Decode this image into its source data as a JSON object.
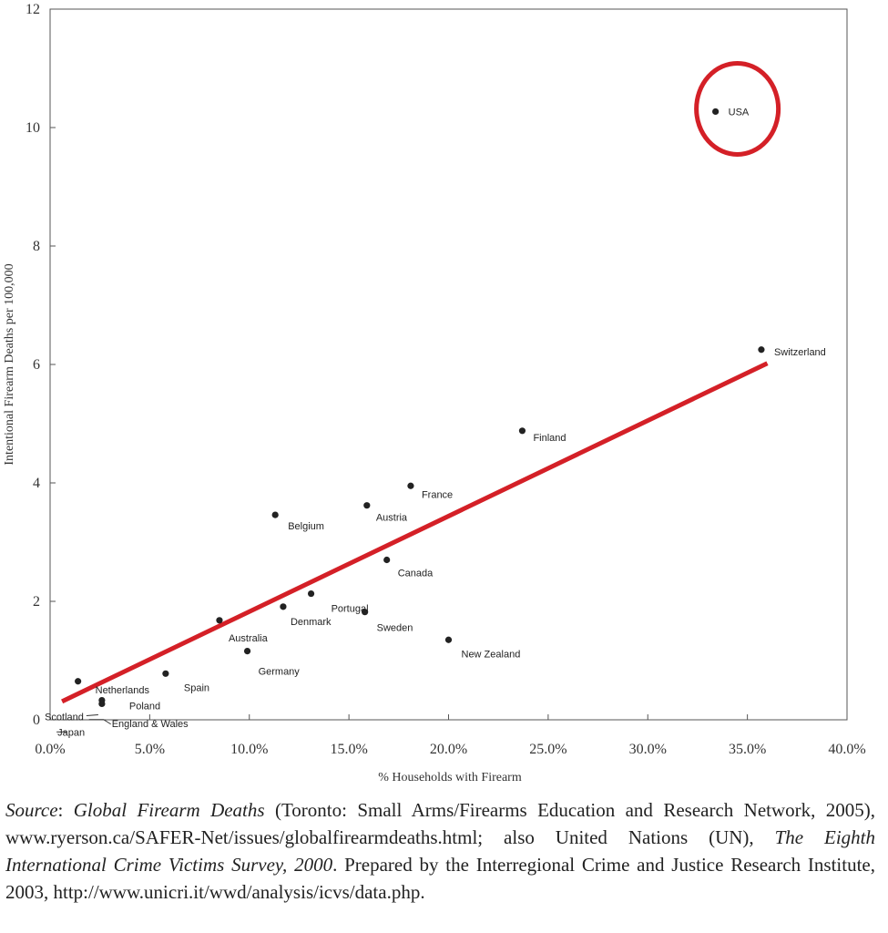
{
  "chart_data": {
    "type": "scatter",
    "title": "",
    "xlabel": "% Households with Firearm",
    "ylabel": "Intentional Firearm Deaths per 100,000",
    "xlim": [
      0,
      40
    ],
    "ylim": [
      0,
      12
    ],
    "x_ticks": [
      0,
      5,
      10,
      15,
      20,
      25,
      30,
      35,
      40
    ],
    "x_tick_labels": [
      "0.0%",
      "5.0%",
      "10.0%",
      "15.0%",
      "20.0%",
      "25.0%",
      "30.0%",
      "35.0%",
      "40.0%"
    ],
    "y_ticks": [
      0,
      2,
      4,
      6,
      8,
      10,
      12
    ],
    "y_tick_labels": [
      "0",
      "2",
      "4",
      "6",
      "8",
      "10",
      "12"
    ],
    "grid": false,
    "points": [
      {
        "label": "USA",
        "x": 33.4,
        "y": 10.27
      },
      {
        "label": "Switzerland",
        "x": 35.7,
        "y": 6.25
      },
      {
        "label": "Finland",
        "x": 23.7,
        "y": 4.88
      },
      {
        "label": "France",
        "x": 18.1,
        "y": 3.95
      },
      {
        "label": "Austria",
        "x": 15.9,
        "y": 3.62
      },
      {
        "label": "Belgium",
        "x": 11.3,
        "y": 3.46
      },
      {
        "label": "Canada",
        "x": 16.9,
        "y": 2.7
      },
      {
        "label": "Portugal",
        "x": 13.1,
        "y": 2.13
      },
      {
        "label": "Denmark",
        "x": 11.7,
        "y": 1.91
      },
      {
        "label": "Sweden",
        "x": 15.8,
        "y": 1.82
      },
      {
        "label": "Australia",
        "x": 8.5,
        "y": 1.68
      },
      {
        "label": "New Zealand",
        "x": 20.0,
        "y": 1.35
      },
      {
        "label": "Germany",
        "x": 9.9,
        "y": 1.16
      },
      {
        "label": "Spain",
        "x": 5.8,
        "y": 0.78
      },
      {
        "label": "Netherlands",
        "x": 1.4,
        "y": 0.65
      },
      {
        "label": "Poland",
        "x": 2.6,
        "y": 0.33
      },
      {
        "label": "Scotland",
        "x": 2.6,
        "y": 0.27
      },
      {
        "label": "England & Wales",
        "x": 2.5,
        "y": 0.05
      },
      {
        "label": "Japan",
        "x": 0.6,
        "y": -0.02
      }
    ],
    "trend_line": {
      "x": [
        0.6,
        36.0
      ],
      "y": [
        0.31,
        6.02
      ],
      "color": "#d42027"
    },
    "highlight": {
      "label": "USA",
      "color": "#d42027"
    }
  },
  "source": {
    "prefix": "Source",
    "title1": "Global Firearm Deaths",
    "text1": " (Toronto: Small Arms/Firearms Education and Research Network, 2005), www.ryerson.ca/SAFER-Net/issues/globalfirearmdeaths.html; also United Nations (UN), ",
    "title2": "The Eighth International Crime Victims Survey, 2000",
    "text2": ". Prepared by the Interregional Crime and Justice Research Institute, 2003, http://www.unicri.it/wwd/analysis/icvs/data.php."
  }
}
